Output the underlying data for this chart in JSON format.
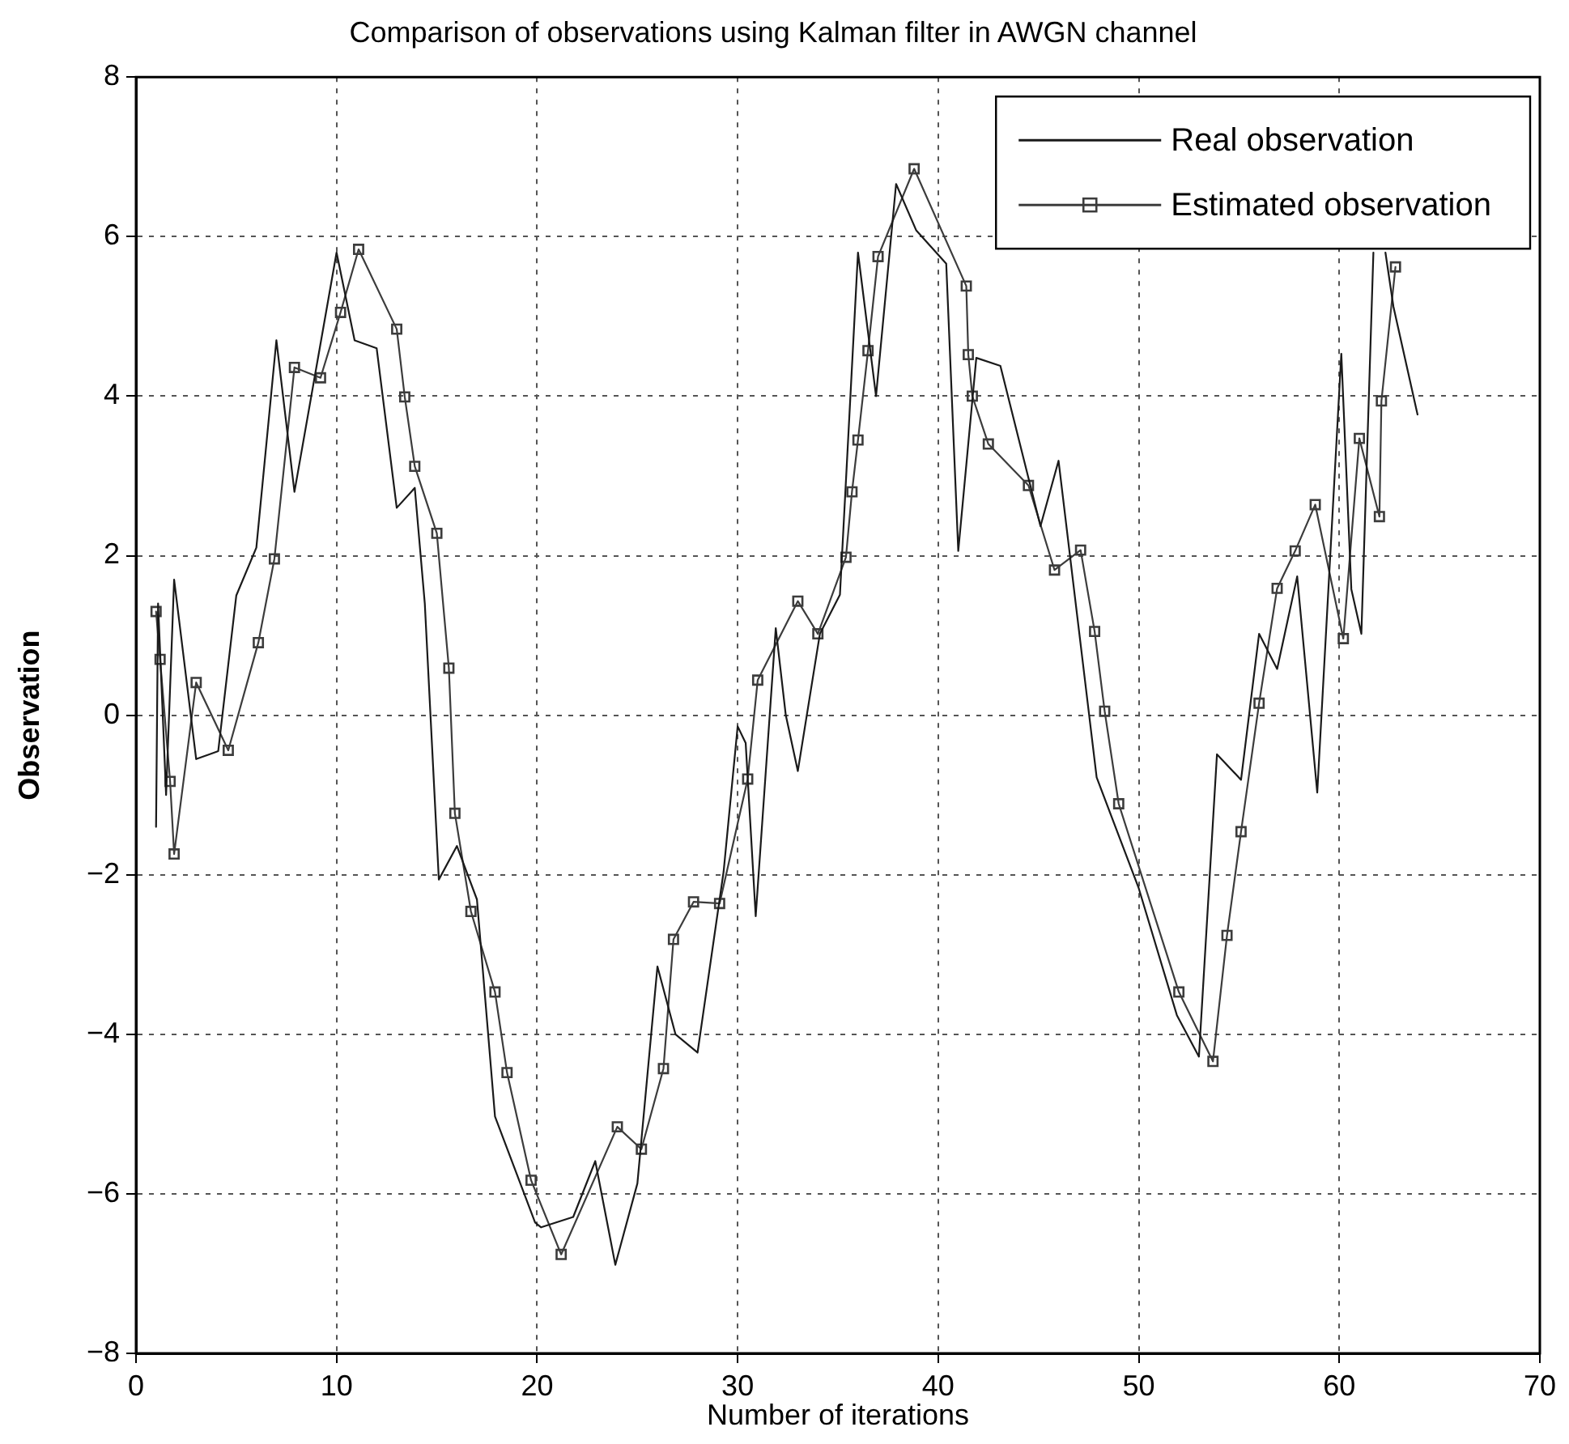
{
  "chart_data": {
    "type": "line",
    "title": "Comparison of observations using Kalman filter in AWGN channel",
    "xlabel": "Number of iterations",
    "ylabel": "Observation",
    "xlim": [
      0,
      70
    ],
    "xticks": [
      0,
      10,
      20,
      30,
      40,
      50,
      60,
      70
    ],
    "ylim": [
      -8,
      8
    ],
    "yticks": [
      {
        "value": -8,
        "label": "−8"
      },
      {
        "value": -6,
        "label": "−6"
      },
      {
        "value": -4,
        "label": "−4"
      },
      {
        "value": -2,
        "label": "−2"
      },
      0,
      2,
      4,
      6,
      8
    ],
    "grid": true,
    "legend": "top right",
    "line_style": "solid",
    "series": [
      {
        "name": "Real observation",
        "color": "#1a1a1a",
        "marker": "none",
        "x": [
          1,
          1.1,
          1.5,
          1.9,
          3,
          4.1,
          5,
          6,
          7,
          7.9,
          10,
          10.9,
          12,
          13,
          13.9,
          14.4,
          15.1,
          16,
          17,
          17.9,
          19.9,
          20.2,
          21.8,
          22.9,
          23.9,
          25,
          26,
          26.9,
          28,
          29.3,
          30,
          30.4,
          30.9,
          31.9,
          32.4,
          33,
          34.1,
          35.1,
          36,
          36.9,
          37.9,
          38.9,
          40.4,
          41,
          41.9,
          43.1,
          45.1,
          46,
          47.9,
          50,
          51.9,
          53,
          53.9,
          55.1,
          56,
          56.9,
          57.9,
          58.9,
          60.1,
          60.6,
          61.1,
          61.7,
          62,
          62.3,
          62.7,
          63.9
        ],
        "values": [
          -1.4,
          1.4,
          -1.0,
          1.7,
          -0.55,
          -0.45,
          1.5,
          2.1,
          4.7,
          2.8,
          5.8,
          4.7,
          4.6,
          2.6,
          2.85,
          1.4,
          -2.06,
          -1.64,
          -2.31,
          -5.03,
          -6.36,
          -6.42,
          -6.29,
          -5.59,
          -6.89,
          -5.87,
          -3.15,
          -4.0,
          -4.23,
          -1.96,
          -0.14,
          -0.35,
          -2.52,
          1.09,
          0,
          -0.7,
          1.02,
          1.51,
          5.8,
          4.0,
          6.66,
          6.08,
          5.66,
          2.06,
          4.48,
          4.38,
          2.37,
          3.19,
          -0.78,
          -2.17,
          -3.76,
          -4.28,
          -0.49,
          -0.81,
          1.02,
          0.58,
          1.74,
          -0.97,
          4.53,
          1.58,
          1.02,
          5.8,
          null,
          5.8,
          5.12,
          3.77
        ]
      },
      {
        "name": "Estimated observation",
        "color": "#3c3c3c",
        "marker": "square",
        "x": [
          1,
          1.2,
          1.7,
          1.9,
          3,
          4.6,
          6.1,
          6.9,
          7.9,
          9.2,
          10.2,
          11.1,
          13,
          13.4,
          13.9,
          15,
          15.6,
          15.9,
          16.7,
          17.9,
          18.5,
          19.7,
          21.2,
          24,
          25.2,
          26.3,
          26.8,
          27.8,
          29.1,
          30.5,
          31,
          33,
          34,
          35.4,
          35.7,
          36,
          36.5,
          37,
          38.8,
          41.4,
          41.5,
          41.7,
          42.5,
          44.5,
          45.8,
          47.1,
          47.8,
          48.3,
          49,
          52,
          53.7,
          54.4,
          55.1,
          56,
          56.9,
          57.8,
          58.8,
          60.2,
          61,
          62,
          62.1,
          62.8
        ],
        "values": [
          1.3,
          0.7,
          -0.83,
          -1.74,
          0.41,
          -0.44,
          0.91,
          1.96,
          4.36,
          4.23,
          5.05,
          5.84,
          4.84,
          3.99,
          3.12,
          2.28,
          0.59,
          -1.23,
          -2.46,
          -3.47,
          -4.48,
          -5.83,
          -6.76,
          -5.16,
          -5.44,
          -4.43,
          -2.81,
          -2.34,
          -2.36,
          -0.8,
          0.44,
          1.43,
          1.02,
          1.98,
          2.8,
          3.45,
          4.57,
          5.75,
          6.85,
          5.38,
          4.52,
          4.0,
          3.4,
          2.88,
          1.82,
          2.07,
          1.05,
          0.05,
          -1.11,
          -3.47,
          -4.34,
          -2.76,
          -1.46,
          0.15,
          1.59,
          2.06,
          2.64,
          0.96,
          3.47,
          2.49,
          3.94,
          5.62
        ]
      }
    ]
  }
}
